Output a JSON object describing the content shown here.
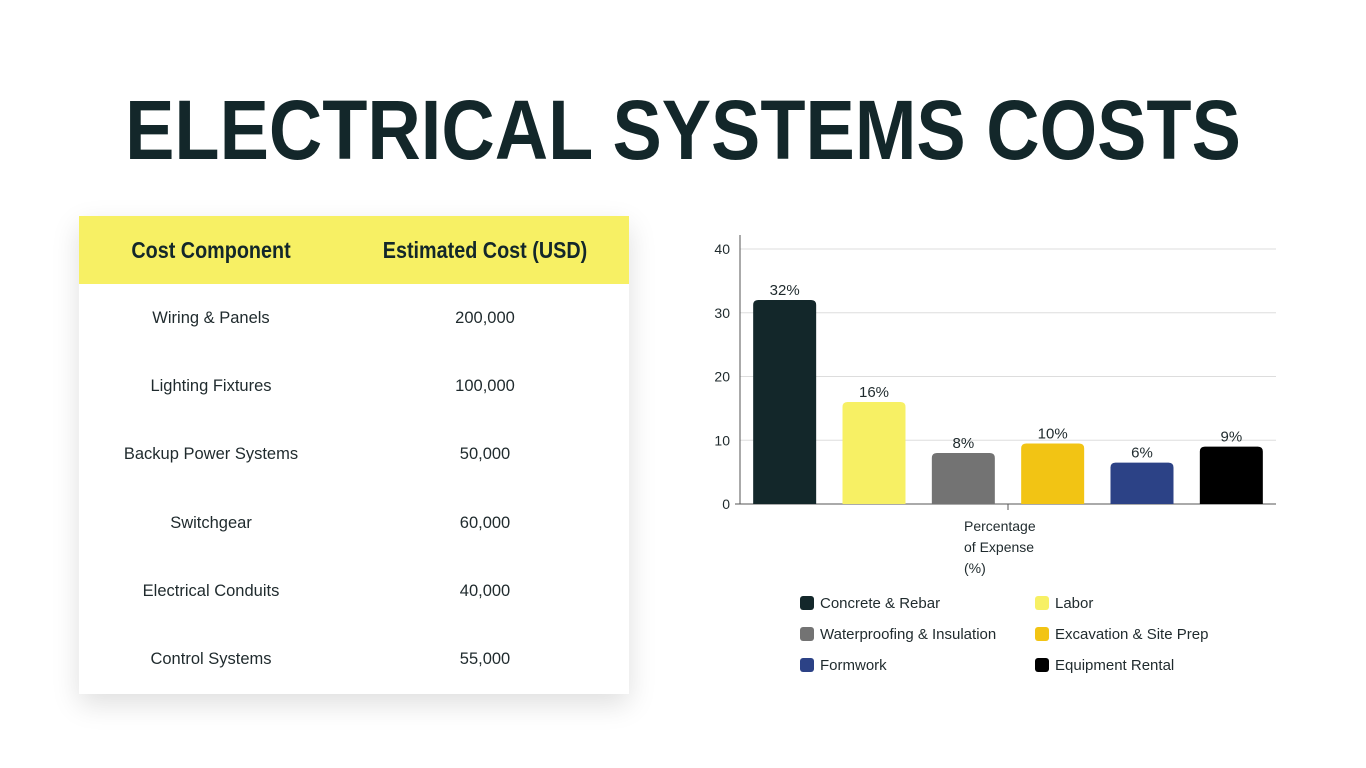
{
  "page": {
    "title": "ELECTRICAL SYSTEMS COSTS"
  },
  "table": {
    "headers": [
      "Cost Component",
      "Estimated Cost (USD)"
    ],
    "rows": [
      {
        "component": "Wiring & Panels",
        "cost": "200,000"
      },
      {
        "component": "Lighting Fixtures",
        "cost": "100,000"
      },
      {
        "component": "Backup Power Systems",
        "cost": "50,000"
      },
      {
        "component": "Switchgear",
        "cost": "60,000"
      },
      {
        "component": "Electrical Conduits",
        "cost": "40,000"
      },
      {
        "component": "Control Systems",
        "cost": "55,000"
      }
    ]
  },
  "chart_data": {
    "type": "bar",
    "xlabel": "Percentage of Expense (%)",
    "ylabel": "",
    "ylim": [
      0,
      40
    ],
    "yticks": [
      0,
      10,
      20,
      30,
      40
    ],
    "grid": true,
    "legend_position": "bottom",
    "series": [
      {
        "name": "Concrete & Rebar",
        "value": 32,
        "label": "32%",
        "color": "#13272a"
      },
      {
        "name": "Labor",
        "value": 16,
        "label": "16%",
        "color": "#f7f064"
      },
      {
        "name": "Waterproofing & Insulation",
        "value": 8,
        "label": "8%",
        "color": "#737373"
      },
      {
        "name": "Excavation & Site Prep",
        "value": 9.5,
        "label": "10%",
        "color": "#f2c414"
      },
      {
        "name": "Formwork",
        "value": 6.5,
        "label": "6%",
        "color": "#2c4286"
      },
      {
        "name": "Equipment Rental",
        "value": 9,
        "label": "9%",
        "color": "#000000"
      }
    ]
  }
}
